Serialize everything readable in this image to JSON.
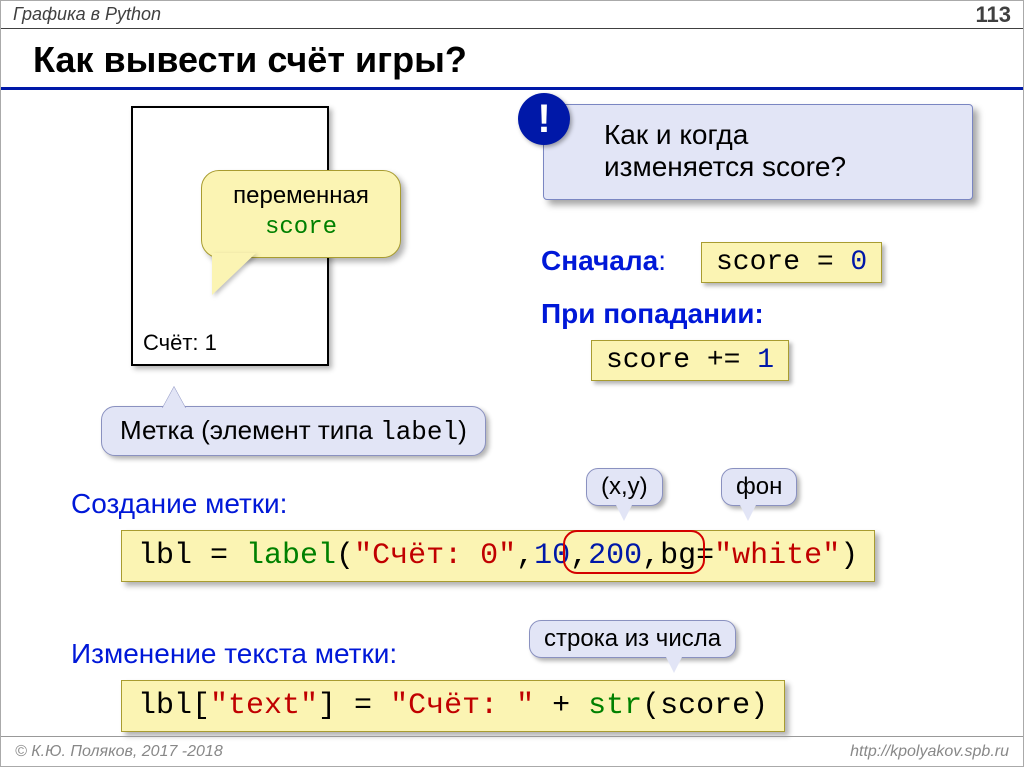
{
  "header": {
    "topic": "Графика в Python",
    "page": "113"
  },
  "title": "Как вывести счёт игры?",
  "window": {
    "score_text": "Счёт: 1"
  },
  "var_callout": {
    "line1": "переменная",
    "code": "score"
  },
  "info": {
    "badge": "!",
    "line1": "Как и когда",
    "line2": "изменяется score?"
  },
  "first": {
    "label": "Сначала",
    "code_lhs": "score = ",
    "code_val": "0"
  },
  "hit": {
    "label": "При попадании",
    "code_lhs": "score += ",
    "code_val": "1"
  },
  "grey": {
    "text_pre": "Метка (элемент типа ",
    "code": "label",
    "text_post": ")"
  },
  "create": {
    "label": "Создание метки:",
    "code": {
      "p1": "lbl = ",
      "fn": "label",
      "p2": "(",
      "str": "\"Счёт: 0\"",
      "p3": ",",
      "n1": "10",
      "p4": ",",
      "n2": "200",
      "p5": ",bg=",
      "bg": "\"white\"",
      "p6": ")"
    }
  },
  "change": {
    "label": "Изменение текста метки:",
    "code": {
      "p1": "lbl[",
      "k": "\"text\"",
      "p2": "] = ",
      "s": "\"Счёт: \"",
      "p3": " + ",
      "fn": "str",
      "p4": "(score)"
    }
  },
  "mini": {
    "xy": "(x,y)",
    "bg": "фон",
    "str": "строка из числа"
  },
  "footer": {
    "copy": "© К.Ю. Поляков, 2017 -2018",
    "url": "http://kpolyakov.spb.ru"
  },
  "colors": {
    "accent_navy": "#0018a8",
    "code_bg": "#fbf4b3",
    "callout_bg": "#e2e5f6",
    "green": "#008000",
    "red": "#c00000",
    "blue_text": "#0018d8"
  }
}
